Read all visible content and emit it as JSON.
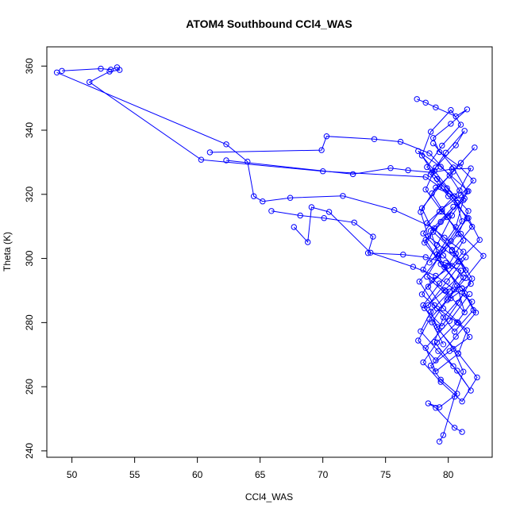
{
  "chart_data": {
    "type": "line",
    "title": "ATOM4 Southbound CCl4_WAS",
    "xlabel": "CCl4_WAS",
    "ylabel": "Theta (K)",
    "xlim": [
      48,
      83.5
    ],
    "ylim": [
      238,
      366
    ],
    "xticks": [
      50,
      55,
      60,
      65,
      70,
      75,
      80
    ],
    "yticks": [
      240,
      260,
      280,
      300,
      320,
      340,
      360
    ],
    "grid": false,
    "legend": "none",
    "marker": "open-circle",
    "colors": {
      "series": "#0000ff",
      "axis": "#000000",
      "background": "#ffffff"
    },
    "series": [
      {
        "x": [
          49.2,
          52.3,
          53.1,
          53.6,
          53.8,
          53.0,
          51.4,
          60.3,
          70.0,
          78.2,
          80.1,
          81.5,
          80.2,
          78.5,
          79.1,
          80.6,
          81.2,
          79.0,
          77.8,
          78.4,
          80.9,
          81.8,
          80.2,
          78.3,
          79.6,
          81.1,
          80.5,
          78.9,
          77.6,
          79.4,
          81.6,
          80.3,
          79.1,
          78.0,
          79.8,
          81.3,
          80.7,
          79.2,
          78.6,
          80.4
        ],
        "y": [
          358.5,
          359.2,
          358.9,
          359.6,
          358.8,
          358.3,
          355.0,
          330.8,
          327.2,
          325.4,
          320.2,
          312.5,
          305.4,
          298.7,
          301.3,
          309.8,
          318.2,
          322.1,
          314.5,
          306.9,
          299.2,
          292.1,
          287.6,
          294.3,
          302.8,
          311.6,
          319.4,
          327.3,
          333.5,
          328.6,
          321.0,
          313.4,
          304.2,
          296.5,
          289.8,
          283.2,
          291.5,
          300.8,
          308.6,
          316.1
        ]
      },
      {
        "x": [
          48.8,
          62.3,
          64.0,
          64.5,
          65.2,
          67.4,
          71.6,
          75.7,
          78.9,
          80.3,
          81.4,
          79.7,
          78.1,
          79.5,
          80.8,
          81.9,
          80.6,
          78.8,
          77.9,
          79.3,
          81.0,
          82.1,
          80.4,
          78.7,
          79.9,
          81.2,
          80.0,
          78.4,
          79.6,
          81.5,
          80.8,
          79.0,
          78.2,
          80.1,
          81.7
        ],
        "y": [
          358.0,
          335.6,
          330.2,
          319.4,
          317.8,
          318.9,
          319.5,
          315.1,
          309.4,
          302.7,
          296.4,
          290.1,
          284.5,
          278.9,
          286.2,
          293.7,
          301.5,
          308.3,
          315.7,
          322.4,
          329.8,
          334.6,
          327.1,
          320.3,
          312.9,
          305.6,
          297.8,
          291.2,
          284.4,
          277.6,
          270.3,
          264.8,
          272.1,
          280.5,
          288.9
        ]
      },
      {
        "x": [
          61.0,
          69.9,
          70.3,
          74.1,
          76.2,
          78.5,
          80.1,
          81.3,
          79.4,
          78.1,
          79.7,
          81.1,
          82.0,
          80.5,
          78.9,
          77.7,
          79.2,
          80.8,
          81.6,
          79.9,
          78.3,
          79.5,
          81.0,
          80.2,
          78.6,
          77.9,
          79.1,
          80.7,
          81.9,
          80.3
        ],
        "y": [
          333.1,
          333.8,
          338.1,
          337.2,
          336.4,
          332.8,
          325.9,
          318.7,
          311.4,
          304.9,
          297.3,
          290.6,
          283.9,
          277.2,
          285.4,
          292.8,
          300.1,
          307.6,
          314.8,
          321.9,
          328.5,
          335.2,
          341.7,
          346.3,
          339.5,
          332.1,
          324.8,
          317.3,
          309.9,
          302.4
        ]
      },
      {
        "x": [
          62.3,
          72.4,
          75.4,
          76.8,
          78.7,
          80.3,
          81.8,
          80.9,
          79.3,
          78.0,
          79.6,
          81.2,
          80.0,
          78.5,
          77.6,
          79.0,
          80.6,
          82.2,
          81.1,
          79.4,
          78.2,
          80.0,
          81.5,
          80.4,
          78.8
        ],
        "y": [
          330.6,
          326.3,
          328.2,
          327.5,
          326.8,
          327.9,
          328.1,
          321.2,
          314.6,
          307.8,
          300.9,
          294.1,
          287.5,
          281.0,
          274.4,
          268.2,
          275.6,
          283.1,
          290.7,
          298.2,
          305.8,
          313.3,
          320.9,
          328.4,
          335.9
        ]
      },
      {
        "x": [
          65.9,
          68.2,
          70.1,
          72.5,
          74.0,
          73.6,
          76.4,
          78.2,
          79.8,
          81.0,
          80.1,
          78.6,
          77.8,
          79.2,
          80.7,
          81.8,
          80.4,
          78.9,
          79.6,
          81.3
        ],
        "y": [
          314.8,
          313.4,
          312.6,
          311.2,
          306.8,
          301.7,
          301.2,
          300.4,
          298.6,
          296.2,
          289.7,
          283.4,
          277.3,
          271.1,
          265.0,
          258.8,
          266.4,
          274.0,
          281.6,
          289.2
        ]
      },
      {
        "x": [
          67.7,
          68.8,
          69.1,
          70.5,
          73.8,
          77.2,
          79.0,
          80.5,
          81.9,
          80.7,
          79.1,
          78.0,
          79.4,
          81.1,
          82.3,
          80.8,
          79.2,
          78.4,
          79.9,
          81.4
        ],
        "y": [
          309.8,
          305.1,
          316.0,
          314.5,
          301.8,
          297.4,
          294.6,
          290.3,
          286.5,
          280.1,
          273.8,
          267.6,
          261.5,
          255.4,
          262.9,
          270.4,
          277.9,
          285.4,
          292.9,
          300.4
        ]
      },
      {
        "x": [
          77.5,
          78.2,
          79.0,
          80.6,
          81.5,
          80.2,
          78.8,
          79.3,
          80.9,
          82.0,
          81.0,
          79.5,
          78.3,
          79.7,
          81.2,
          80.3,
          78.7,
          77.9,
          79.1,
          80.8,
          81.7,
          80.1,
          78.6,
          79.4,
          80.7,
          79.3,
          78.4,
          79.0,
          80.5,
          81.1
        ],
        "y": [
          349.7,
          348.6,
          347.1,
          344.3,
          346.5,
          342.0,
          337.6,
          333.2,
          328.7,
          324.3,
          319.8,
          315.4,
          311.0,
          306.5,
          302.1,
          297.7,
          293.2,
          288.8,
          284.4,
          279.9,
          275.5,
          271.1,
          266.6,
          262.2,
          257.8,
          253.6,
          254.8,
          253.4,
          247.2,
          245.9
        ]
      },
      {
        "x": [
          79.3,
          79.6,
          80.5,
          81.2,
          80.4,
          79.1,
          78.0,
          79.3,
          80.8,
          82.5,
          81.6,
          80.0,
          78.6,
          79.8,
          81.3,
          80.6,
          79.0,
          78.2,
          79.5,
          81.0,
          82.8,
          81.4,
          79.9,
          78.7,
          79.6
        ],
        "y": [
          242.9,
          244.9,
          256.9,
          264.7,
          271.8,
          278.6,
          285.4,
          292.2,
          299.0,
          305.8,
          312.6,
          319.4,
          326.2,
          333.0,
          339.8,
          335.3,
          328.4,
          321.5,
          314.6,
          307.7,
          300.8,
          293.9,
          287.0,
          280.1,
          273.2
        ]
      }
    ]
  }
}
